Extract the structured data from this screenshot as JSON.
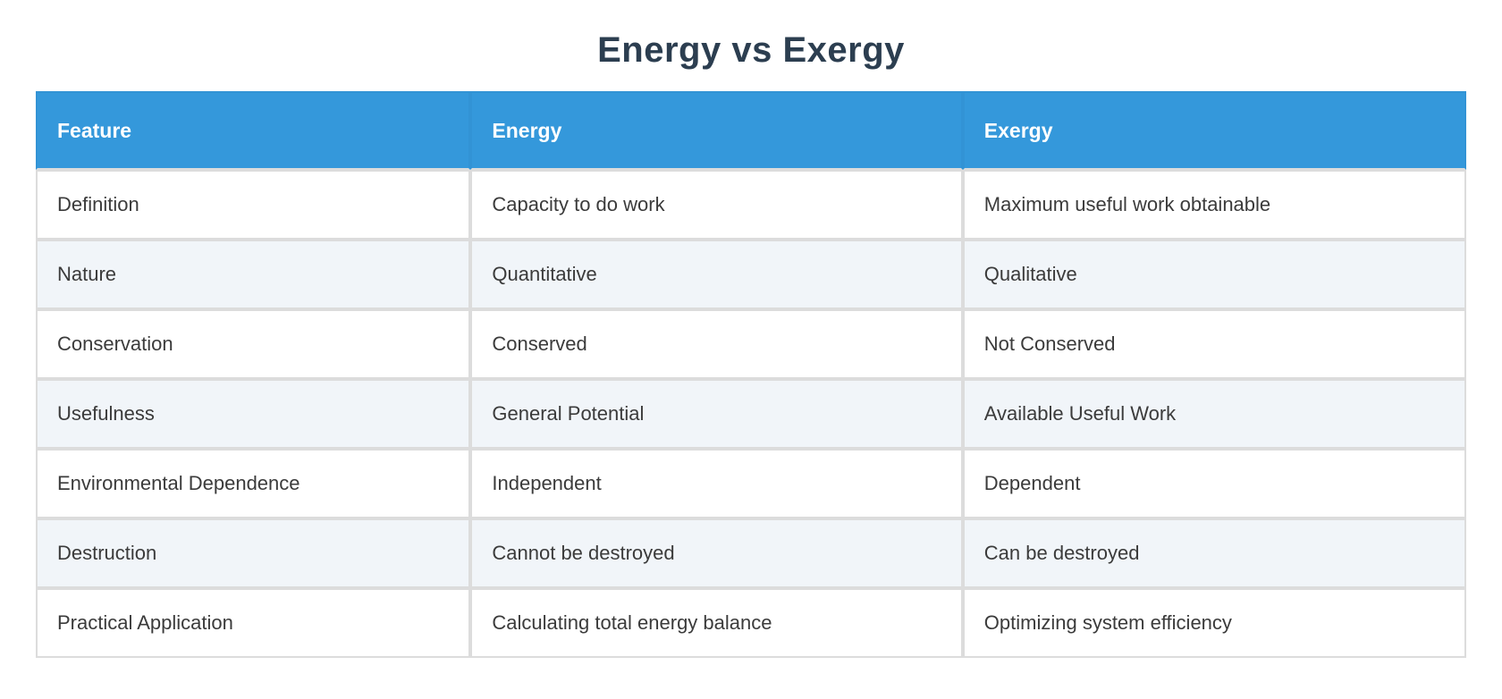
{
  "chart_data": {
    "type": "table",
    "title": "Energy vs Exergy",
    "columns": [
      "Feature",
      "Energy",
      "Exergy"
    ],
    "rows": [
      [
        "Definition",
        "Capacity to do work",
        "Maximum useful work obtainable"
      ],
      [
        "Nature",
        "Quantitative",
        "Qualitative"
      ],
      [
        "Conservation",
        "Conserved",
        "Not Conserved"
      ],
      [
        "Usefulness",
        "General Potential",
        "Available Useful Work"
      ],
      [
        "Environmental Dependence",
        "Independent",
        "Dependent"
      ],
      [
        "Destruction",
        "Cannot be destroyed",
        "Can be destroyed"
      ],
      [
        "Practical Application",
        "Calculating total energy balance",
        "Optimizing system efficiency"
      ]
    ],
    "layout": {
      "legend": "none",
      "grid": "cell-borders",
      "header_position": "top",
      "alternating_rows": true
    }
  },
  "colors": {
    "header_bg": "#3498db",
    "header_text": "#ffffff",
    "row_bg": "#ffffff",
    "alt_row_bg": "#f1f5f9",
    "border": "#dcdcdc",
    "title_text": "#2c3e50",
    "body_text": "#3b3b3b",
    "page_bg": "#ffffff"
  }
}
